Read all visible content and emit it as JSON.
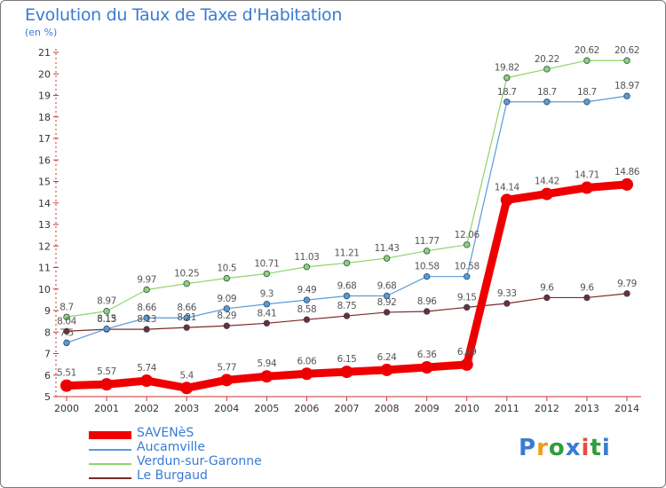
{
  "title": "Evolution du Taux de Taxe d'Habitation",
  "subtitle": "(en %)",
  "brand": "Proxiti",
  "chart_data": {
    "type": "line",
    "title": "Evolution du Taux de Taxe d'Habitation",
    "ylabel": "(en %)",
    "xlabel": "",
    "ylim": [
      5,
      21
    ],
    "yticks": [
      5,
      6,
      7,
      8,
      9,
      10,
      11,
      12,
      13,
      14,
      15,
      16,
      17,
      18,
      19,
      20,
      21
    ],
    "categories": [
      "2000",
      "2001",
      "2002",
      "2003",
      "2004",
      "2005",
      "2006",
      "2007",
      "2008",
      "2009",
      "2010",
      "2011",
      "2012",
      "2013",
      "2014"
    ],
    "grid": false,
    "legend_position": "bottom-left",
    "series": [
      {
        "name": "SAVENèS",
        "color": "#ee0000",
        "width": "thick",
        "values": [
          5.51,
          5.57,
          5.74,
          5.4,
          5.77,
          5.94,
          6.06,
          6.15,
          6.24,
          6.36,
          6.49,
          14.14,
          14.42,
          14.71,
          14.86
        ],
        "labels": [
          "5.51",
          "5.57",
          "5.74",
          "5.4",
          "5.77",
          "5.94",
          "6.06",
          "6.15",
          "6.24",
          "6.36",
          "6.49",
          "14.14",
          "14.42",
          "14.71",
          "14.86"
        ]
      },
      {
        "name": "Aucamville",
        "color": "#5b9bd5",
        "width": "thin",
        "values": [
          7.5,
          8.15,
          8.66,
          8.66,
          9.09,
          9.3,
          9.49,
          9.68,
          9.68,
          10.58,
          10.58,
          18.7,
          18.7,
          18.7,
          18.97
        ],
        "labels": [
          "7.5",
          "8.15",
          "8.66",
          "8.66",
          "9.09",
          "9.3",
          "9.49",
          "9.68",
          "9.68",
          "10.58",
          "10.58",
          "18.7",
          "18.7",
          "18.7",
          "18.97"
        ]
      },
      {
        "name": "Verdun-sur-Garonne",
        "color": "#8fd46a",
        "width": "thin",
        "values": [
          8.7,
          8.97,
          9.97,
          10.25,
          10.5,
          10.71,
          11.03,
          11.21,
          11.43,
          11.77,
          12.06,
          19.82,
          20.22,
          20.62,
          20.62
        ],
        "labels": [
          "8.7",
          "8.97",
          "9.97",
          "10.25",
          "10.5",
          "10.71",
          "11.03",
          "11.21",
          "11.43",
          "11.77",
          "12.06",
          "19.82",
          "20.22",
          "20.62",
          "20.62"
        ]
      },
      {
        "name": "Le Burgaud",
        "color": "#7a2a2a",
        "width": "thin",
        "values": [
          8.04,
          8.13,
          8.13,
          8.21,
          8.29,
          8.41,
          8.58,
          8.75,
          8.92,
          8.96,
          9.15,
          9.33,
          9.6,
          9.6,
          9.79
        ],
        "labels": [
          "8.04",
          "8.13",
          "8.13",
          "8.21",
          "8.29",
          "8.41",
          "8.58",
          "8.75",
          "8.92",
          "8.96",
          "9.15",
          "9.33",
          "9.6",
          "9.6",
          "9.79"
        ]
      }
    ]
  }
}
